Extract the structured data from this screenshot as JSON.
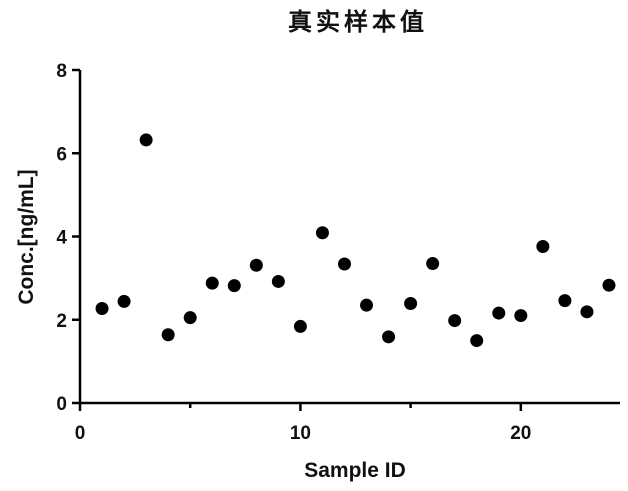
{
  "chart_data": {
    "type": "scatter",
    "title": "真实样本值",
    "xlabel": "Sample ID",
    "ylabel": "Conc.[ng/mL]",
    "xlim": [
      0,
      24.5
    ],
    "ylim": [
      0,
      8
    ],
    "x_ticks": [
      0,
      10,
      20
    ],
    "x_minor_ticks": [
      5,
      15
    ],
    "y_ticks": [
      0,
      2,
      4,
      6,
      8
    ],
    "grid": false,
    "series": [
      {
        "x": [
          1,
          2,
          3,
          4,
          5,
          6,
          7,
          8,
          9,
          10,
          11,
          12,
          13,
          14,
          15,
          16,
          17,
          18,
          19,
          20,
          21,
          22,
          23,
          24
        ],
        "y": [
          2.27,
          2.44,
          6.32,
          1.64,
          2.05,
          2.88,
          2.82,
          3.31,
          2.92,
          1.84,
          4.09,
          3.34,
          2.35,
          1.59,
          2.39,
          3.35,
          1.98,
          1.5,
          2.16,
          2.1,
          3.76,
          2.46,
          2.19,
          2.83
        ]
      }
    ]
  }
}
